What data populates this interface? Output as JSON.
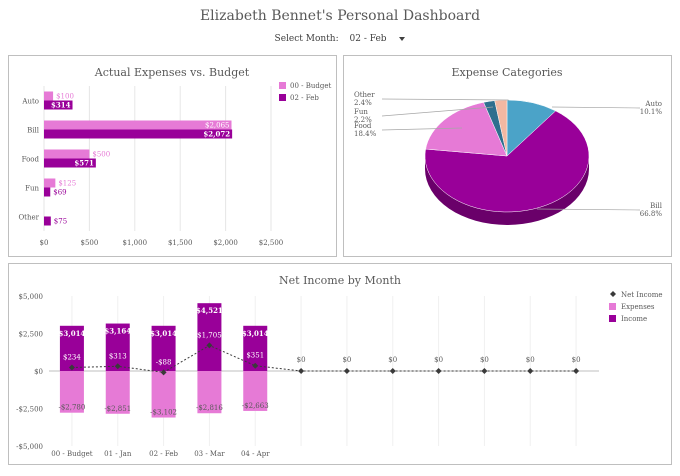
{
  "dashboard": {
    "title": "Elizabeth Bennet's Personal Dashboard",
    "select_label": "Select Month:",
    "select_value": "02 - Feb"
  },
  "colors": {
    "budget": "#e67ad6",
    "actual": "#990099",
    "pie_other": "#f2b8a2",
    "pie_fun": "#4a4a6a",
    "pie_food": "#2e6f8e",
    "pie_auto": "#4ba3c8",
    "pie_bill": "#990099",
    "pie_budget_pink": "#e67ad6",
    "net_marker": "#3a3a3a"
  },
  "chart_data": [
    {
      "id": "expenses",
      "type": "bar",
      "title": "Actual Expenses vs. Budget",
      "orientation": "horizontal",
      "categories": [
        "Auto",
        "Bill",
        "Food",
        "Fun",
        "Other"
      ],
      "series": [
        {
          "name": "00 - Budget",
          "values": [
            100,
            2065,
            500,
            125,
            null
          ],
          "labels": [
            "$100",
            "$2,065",
            "$500",
            "$125",
            ""
          ]
        },
        {
          "name": "02 - Feb",
          "values": [
            314,
            2072,
            571,
            69,
            75
          ],
          "labels": [
            "$314",
            "$2,072",
            "$571",
            "$69",
            "$75"
          ]
        }
      ],
      "xticks": [
        "$0",
        "$500",
        "$1,000",
        "$1,500",
        "$2,000",
        "$2,500"
      ],
      "xlim": [
        0,
        2500
      ],
      "grid": true,
      "legend": "right"
    },
    {
      "id": "categories",
      "type": "pie",
      "title": "Expense Categories",
      "slices": [
        {
          "name": "Auto",
          "value": 10.1,
          "label": "10.1%"
        },
        {
          "name": "Bill",
          "value": 66.8,
          "label": "66.8%"
        },
        {
          "name": "Food",
          "value": 18.4,
          "label": "18.4%"
        },
        {
          "name": "Fun",
          "value": 2.2,
          "label": "2.2%"
        },
        {
          "name": "Other",
          "value": 2.4,
          "label": "2.4%"
        }
      ]
    },
    {
      "id": "netincome",
      "type": "bar",
      "title": "Net Income by Month",
      "categories": [
        "00 - Budget",
        "01 - Jan",
        "02 - Feb",
        "03 - Mar",
        "04 - Apr",
        "",
        "",
        "",
        "",
        "",
        "",
        ""
      ],
      "series": [
        {
          "name": "Income",
          "values": [
            3014,
            3164,
            3014,
            4521,
            3014,
            0,
            0,
            0,
            0,
            0,
            0,
            0
          ],
          "labels": [
            "$3,014",
            "$3,164",
            "$3,014",
            "$4,521",
            "$3,014",
            "",
            "",
            "",
            "",
            "",
            "",
            ""
          ]
        },
        {
          "name": "Expenses",
          "values": [
            -2780,
            -2851,
            -3102,
            -2816,
            -2663,
            0,
            0,
            0,
            0,
            0,
            0,
            0
          ],
          "labels": [
            "-$2,780",
            "-$2,851",
            "-$3,102",
            "-$2,816",
            "-$2,663",
            "",
            "",
            "",
            "",
            "",
            "",
            ""
          ]
        },
        {
          "name": "Net Income",
          "values": [
            234,
            313,
            -88,
            1705,
            351,
            0,
            0,
            0,
            0,
            0,
            0,
            0
          ],
          "labels": [
            "$234",
            "$313",
            "-$88",
            "$1,705",
            "$351",
            "$0",
            "$0",
            "$0",
            "$0",
            "$0",
            "$0",
            "$0"
          ]
        }
      ],
      "yticks": [
        "$5,000",
        "$2,500",
        "$0",
        "-$2,500",
        "-$5,000"
      ],
      "ylim": [
        -5000,
        5000
      ],
      "grid": true,
      "legend": "right"
    }
  ]
}
